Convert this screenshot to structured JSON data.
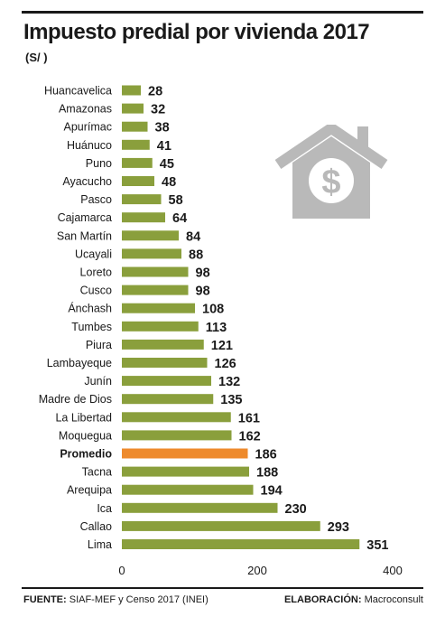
{
  "title": "Impuesto predial por vivienda 2017",
  "subtitle": "(S/ )",
  "footer": {
    "source_label": "FUENTE:",
    "source_text": "SIAF-MEF y Censo 2017 (INEI)",
    "credit_label": "ELABORACIÓN:",
    "credit_text": "Macroconsult"
  },
  "colors": {
    "bar": "#8a9f3c",
    "highlight": "#ee8a2c",
    "icon": "#b9b9b9"
  },
  "icon": "house-dollar-icon",
  "chart_data": {
    "type": "bar",
    "orientation": "horizontal",
    "title": "Impuesto predial por vivienda 2017",
    "categories": [
      "Huancavelica",
      "Amazonas",
      "Apurímac",
      "Huánuco",
      "Puno",
      "Ayacucho",
      "Pasco",
      "Cajamarca",
      "San Martín",
      "Ucayali",
      "Loreto",
      "Cusco",
      "Ánchash",
      "Tumbes",
      "Piura",
      "Lambayeque",
      "Junín",
      "Madre de Dios",
      "La Libertad",
      "Moquegua",
      "Promedio",
      "Tacna",
      "Arequipa",
      "Ica",
      "Callao",
      "Lima"
    ],
    "values": [
      28,
      32,
      38,
      41,
      45,
      48,
      58,
      64,
      84,
      88,
      98,
      98,
      108,
      113,
      121,
      126,
      132,
      135,
      161,
      162,
      186,
      188,
      194,
      230,
      293,
      351
    ],
    "highlight": "Promedio",
    "xlim": [
      0,
      400
    ],
    "xticks": [
      0,
      200,
      400
    ],
    "grid": false
  }
}
